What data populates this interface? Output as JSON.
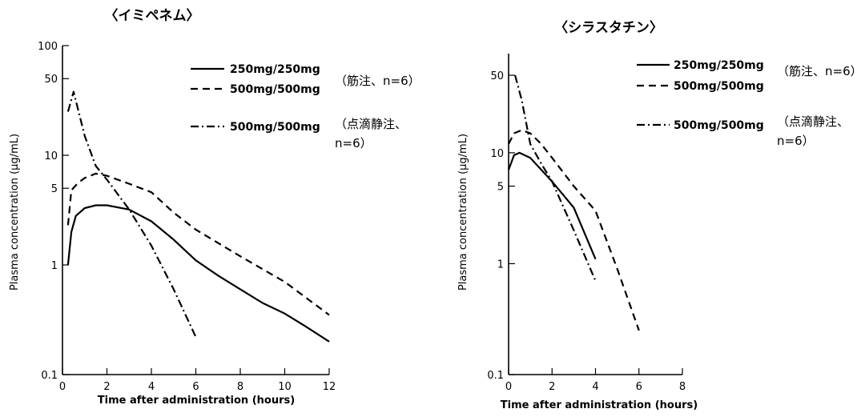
{
  "charts": [
    {
      "title": "〈イミペネム〉",
      "ylabel": "Plasma concentration (μg/mL)",
      "xlabel": "Time after administration (hours)",
      "ylim": [
        0.1,
        100
      ],
      "xlim": [
        0,
        12
      ],
      "x_ticks": [
        "0",
        "2",
        "4",
        "6",
        "8",
        "10",
        "12"
      ],
      "y_ticks": [
        {
          "value": 100,
          "label": "100"
        },
        {
          "value": 50,
          "label": "50"
        },
        {
          "value": 10,
          "label": "10"
        },
        {
          "value": 5,
          "label": "5"
        },
        {
          "value": 1,
          "label": "1"
        },
        {
          "value": 0.1,
          "label": "0.1"
        }
      ],
      "legend": [
        {
          "label": "250mg/250mg",
          "style": "solid"
        },
        {
          "label": "500mg/500mg",
          "style": "dashed"
        },
        {
          "label": "500mg/500mg",
          "style": "dashdot"
        }
      ],
      "notes": [
        {
          "lines": [
            "（筋注、n=6）"
          ]
        },
        {
          "lines": [
            "（点滴静注、",
            "n=6）"
          ]
        }
      ]
    },
    {
      "title": "〈シラスタチン〉",
      "ylabel": "Plasma concentration (μg/mL)",
      "xlabel": "Time after administration (hours)",
      "ylim": [
        0.1,
        50
      ],
      "xlim": [
        0,
        8
      ],
      "x_ticks": [
        "0",
        "2",
        "4",
        "6",
        "8"
      ],
      "y_ticks": [
        {
          "value": 50,
          "label": "50"
        },
        {
          "value": 10,
          "label": "10"
        },
        {
          "value": 5,
          "label": "5"
        },
        {
          "value": 1,
          "label": "1"
        },
        {
          "value": 0.1,
          "label": "0.1"
        }
      ],
      "legend": [
        {
          "label": "250mg/250mg",
          "style": "solid"
        },
        {
          "label": "500mg/500mg",
          "style": "dashed"
        },
        {
          "label": "500mg/500mg",
          "style": "dashdot"
        }
      ],
      "notes": [
        {
          "lines": [
            "（筋注、n=6）"
          ]
        },
        {
          "lines": [
            "（点滴静注、",
            "n=6）"
          ]
        }
      ]
    }
  ],
  "chart_data": [
    {
      "type": "line",
      "title": "〈イミペネム〉",
      "xlabel": "Time after administration (hours)",
      "ylabel": "Plasma concentration (μg/mL)",
      "y_scale": "log",
      "ylim": [
        0.1,
        100
      ],
      "xlim": [
        0,
        12
      ],
      "series": [
        {
          "name": "250mg/250mg",
          "style": "solid",
          "x": [
            0.25,
            0.4,
            0.6,
            1.0,
            1.5,
            2.0,
            3.0,
            4.0,
            5.0,
            6.0,
            7.0,
            8.0,
            9.0,
            10.0,
            11.0,
            12.0
          ],
          "y": [
            1.0,
            2.0,
            2.8,
            3.3,
            3.5,
            3.5,
            3.2,
            2.5,
            1.7,
            1.1,
            0.8,
            0.6,
            0.45,
            0.36,
            0.27,
            0.2
          ]
        },
        {
          "name": "500mg/500mg",
          "style": "dashed",
          "x": [
            0.25,
            0.4,
            0.7,
            1.0,
            1.5,
            2.0,
            3.0,
            4.0,
            5.0,
            6.0,
            8.0,
            10.0,
            12.0
          ],
          "y": [
            2.3,
            4.8,
            5.6,
            6.2,
            6.8,
            6.5,
            5.5,
            4.6,
            3.0,
            2.1,
            1.2,
            0.7,
            0.35
          ]
        },
        {
          "name": "500mg/500mg",
          "style": "dashdot",
          "x": [
            0.25,
            0.5,
            1.0,
            1.5,
            2.0,
            3.0,
            4.0,
            5.0,
            6.0
          ],
          "y": [
            25,
            38,
            15,
            8,
            6,
            3.2,
            1.5,
            0.6,
            0.22
          ]
        }
      ]
    },
    {
      "type": "line",
      "title": "〈シラスタチン〉",
      "xlabel": "Time after administration (hours)",
      "ylabel": "Plasma concentration (μg/mL)",
      "y_scale": "log",
      "ylim": [
        0.1,
        50
      ],
      "xlim": [
        0,
        8
      ],
      "series": [
        {
          "name": "250mg/250mg",
          "style": "solid",
          "x": [
            0.0,
            0.25,
            0.5,
            1.0,
            2.0,
            3.0,
            4.0
          ],
          "y": [
            7.0,
            9.5,
            10.0,
            9.0,
            5.5,
            3.2,
            1.1
          ]
        },
        {
          "name": "500mg/500mg",
          "style": "dashed",
          "x": [
            0.0,
            0.25,
            0.6,
            1.0,
            1.5,
            2.0,
            3.0,
            4.0,
            5.0,
            6.0
          ],
          "y": [
            12,
            15,
            16,
            15,
            12,
            9,
            5,
            3,
            0.9,
            0.25
          ]
        },
        {
          "name": "500mg/500mg",
          "style": "dashdot",
          "x": [
            0.3,
            0.6,
            1.0,
            1.5,
            2.0,
            3.0,
            4.0
          ],
          "y": [
            50,
            30,
            12,
            8,
            5.5,
            2.0,
            0.7
          ]
        }
      ]
    }
  ]
}
